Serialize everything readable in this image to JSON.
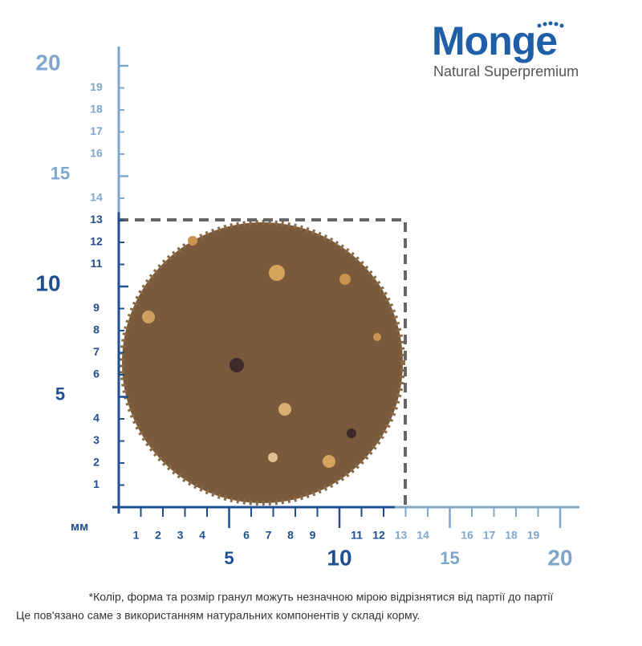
{
  "logo": {
    "brand": "Monge",
    "tagline": "Natural Superpremium"
  },
  "ruler": {
    "unit": "мм",
    "y_small": [
      1,
      2,
      3,
      4,
      6,
      7,
      8,
      9,
      11,
      12,
      13,
      14,
      16,
      17,
      18,
      19
    ],
    "y_major": [
      5,
      10,
      15,
      20
    ],
    "x_small": [
      1,
      2,
      3,
      4,
      6,
      7,
      8,
      9,
      11,
      12,
      13,
      14,
      16,
      17,
      18,
      19
    ],
    "x_major": [
      5,
      10,
      15,
      20
    ],
    "y_dark_until": 13,
    "x_dark_until": 12,
    "dark_color": "#1f4f8f",
    "light_color": "#7fa6cc"
  },
  "note": [
    "*Колір, форма та розмір гранул можуть незначною мірою відрізнятися від партії до партії",
    "Це пов'язано саме з використанням натуральних компонентів у складі корму."
  ]
}
